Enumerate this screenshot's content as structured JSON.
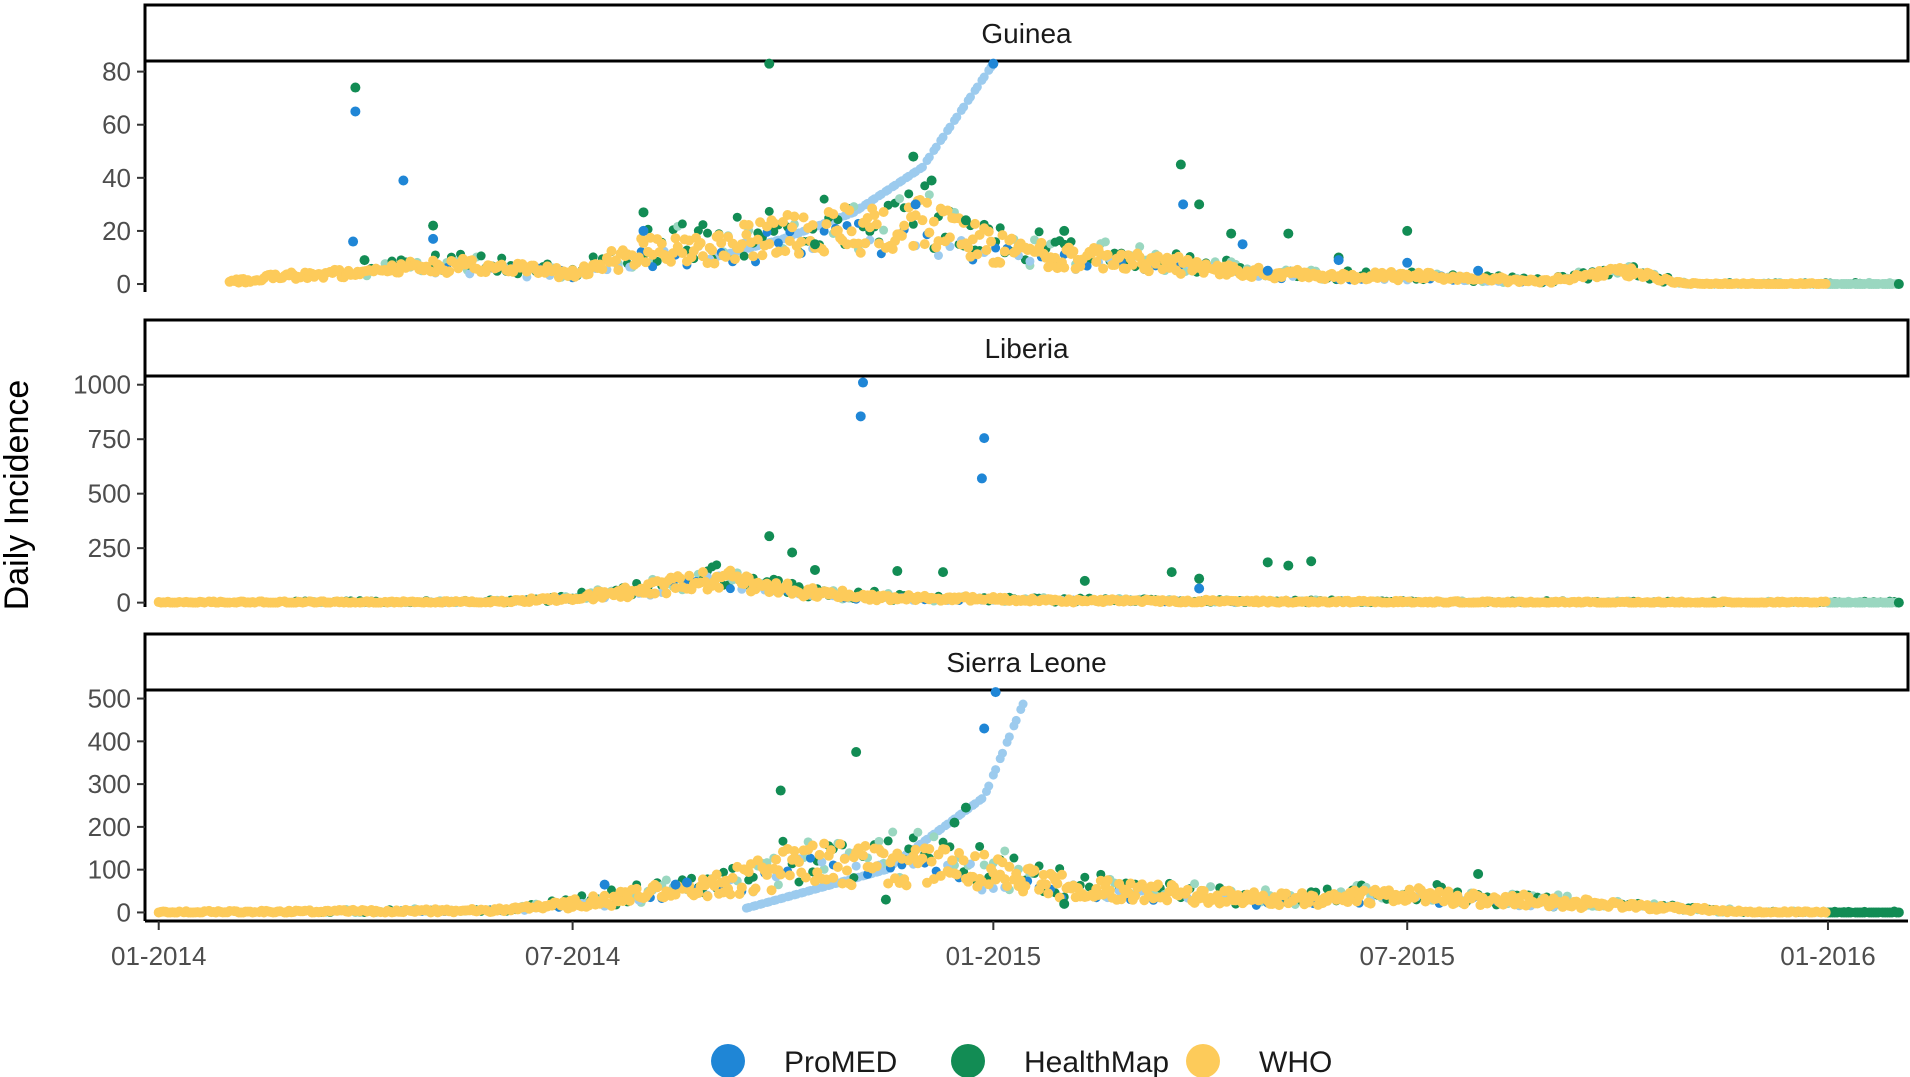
{
  "chart_data": {
    "type": "scatter",
    "ylabel": "Daily Incidence",
    "xlabel": "",
    "x_ticks": [
      "01-2014",
      "07-2014",
      "01-2015",
      "07-2015",
      "01-2016"
    ],
    "x_tick_dates": [
      "2014-01-01",
      "2014-07-01",
      "2015-01-01",
      "2015-07-01",
      "2016-01-01"
    ],
    "xlim": [
      "2013-12-26",
      "2016-02-05"
    ],
    "legend": {
      "position": "bottom"
    },
    "colors": {
      "ProMED": "#1f86d6",
      "HealthMap": "#128c54",
      "WHO": "#fdcb5a",
      "ProMED_light": "#9ccbee",
      "HealthMap_light": "#9ad7c0"
    },
    "series_order": [
      "ProMED",
      "HealthMap",
      "WHO"
    ],
    "panels": [
      {
        "country": "Guinea",
        "yticks": [
          0,
          20,
          40,
          60,
          80
        ],
        "ylim": [
          -3,
          84
        ],
        "ProMED": [
          [
            "2014-03-28",
            65
          ],
          [
            "2014-04-18",
            39
          ],
          [
            "2014-03-27",
            16
          ],
          [
            "2014-05-01",
            17
          ],
          [
            "2014-08-01",
            20
          ],
          [
            "2014-11-28",
            30
          ],
          [
            "2015-01-01",
            83
          ],
          [
            "2015-03-25",
            30
          ],
          [
            "2015-04-20",
            15
          ],
          [
            "2015-05-01",
            5
          ],
          [
            "2015-06-01",
            9
          ],
          [
            "2015-07-01",
            8
          ],
          [
            "2015-08-01",
            5
          ]
        ],
        "ProMED_curve": [
          [
            "2014-09-01",
            10
          ],
          [
            "2014-10-01",
            17
          ],
          [
            "2014-11-01",
            27
          ],
          [
            "2014-12-01",
            44
          ],
          [
            "2015-01-01",
            83
          ]
        ],
        "HealthMap": [
          [
            "2014-03-28",
            74
          ],
          [
            "2014-09-25",
            83
          ],
          [
            "2014-11-27",
            48
          ],
          [
            "2014-12-05",
            39
          ],
          [
            "2015-03-24",
            45
          ],
          [
            "2015-04-01",
            30
          ],
          [
            "2015-04-15",
            19
          ],
          [
            "2015-05-10",
            19
          ],
          [
            "2015-06-01",
            10
          ],
          [
            "2015-07-01",
            20
          ],
          [
            "2014-05-01",
            22
          ],
          [
            "2014-04-01",
            9
          ],
          [
            "2014-08-01",
            27
          ],
          [
            "2014-10-15",
            15
          ],
          [
            "2014-12-20",
            24
          ],
          [
            "2015-02-01",
            20
          ],
          [
            "2016-02-01",
            0
          ]
        ],
        "WHO": [
          [
            "2014-02-01",
            1
          ],
          [
            "2014-03-01",
            3
          ],
          [
            "2014-04-01",
            4
          ],
          [
            "2014-05-01",
            7
          ],
          [
            "2014-06-01",
            6
          ],
          [
            "2014-07-01",
            4
          ],
          [
            "2014-08-01",
            12
          ],
          [
            "2014-09-01",
            14
          ],
          [
            "2014-10-01",
            18
          ],
          [
            "2014-11-01",
            20
          ],
          [
            "2014-12-01",
            22
          ],
          [
            "2015-01-01",
            14
          ],
          [
            "2015-02-01",
            10
          ],
          [
            "2015-03-01",
            9
          ],
          [
            "2015-04-01",
            6
          ],
          [
            "2015-05-01",
            4
          ],
          [
            "2015-06-01",
            3
          ],
          [
            "2015-07-01",
            3
          ],
          [
            "2015-08-01",
            2
          ],
          [
            "2015-09-01",
            1
          ],
          [
            "2015-10-01",
            5
          ],
          [
            "2015-11-01",
            0
          ],
          [
            "2016-01-01",
            0
          ]
        ]
      },
      {
        "country": "Liberia",
        "yticks": [
          0,
          250,
          500,
          750,
          1000
        ],
        "ylim": [
          -20,
          1040
        ],
        "ProMED": [
          [
            "2014-11-05",
            1010
          ],
          [
            "2014-11-04",
            855
          ],
          [
            "2014-12-28",
            755
          ],
          [
            "2014-12-27",
            570
          ],
          [
            "2015-04-01",
            65
          ]
        ],
        "ProMED_curve": [],
        "HealthMap": [
          [
            "2014-09-25",
            305
          ],
          [
            "2014-10-05",
            230
          ],
          [
            "2014-10-15",
            150
          ],
          [
            "2014-11-20",
            145
          ],
          [
            "2014-12-10",
            140
          ],
          [
            "2015-03-20",
            140
          ],
          [
            "2015-04-01",
            110
          ],
          [
            "2015-05-01",
            185
          ],
          [
            "2015-05-10",
            170
          ],
          [
            "2015-05-20",
            190
          ],
          [
            "2015-02-10",
            100
          ],
          [
            "2016-02-01",
            0
          ]
        ],
        "WHO": [
          [
            "2014-01-01",
            0
          ],
          [
            "2014-05-01",
            2
          ],
          [
            "2014-06-01",
            5
          ],
          [
            "2014-07-01",
            20
          ],
          [
            "2014-08-01",
            60
          ],
          [
            "2014-09-01",
            110
          ],
          [
            "2014-10-01",
            60
          ],
          [
            "2014-11-01",
            30
          ],
          [
            "2014-12-01",
            20
          ],
          [
            "2015-02-01",
            10
          ],
          [
            "2015-05-01",
            5
          ],
          [
            "2015-10-01",
            0
          ],
          [
            "2016-01-01",
            0
          ]
        ]
      },
      {
        "country": "Sierra Leone",
        "yticks": [
          0,
          100,
          200,
          300,
          400,
          500
        ],
        "ylim": [
          -20,
          520
        ],
        "ProMED": [
          [
            "2014-07-15",
            65
          ],
          [
            "2014-08-15",
            65
          ],
          [
            "2014-08-20",
            70
          ],
          [
            "2014-12-28",
            430
          ],
          [
            "2015-01-02",
            515
          ]
        ],
        "ProMED_curve": [
          [
            "2014-09-15",
            10
          ],
          [
            "2014-11-15",
            100
          ],
          [
            "2014-12-28",
            270
          ],
          [
            "2015-01-15",
            500
          ]
        ],
        "HealthMap": [
          [
            "2014-09-30",
            285
          ],
          [
            "2014-11-02",
            375
          ],
          [
            "2014-12-20",
            245
          ],
          [
            "2014-12-15",
            210
          ],
          [
            "2015-08-01",
            90
          ],
          [
            "2014-11-15",
            30
          ],
          [
            "2015-02-01",
            20
          ],
          [
            "2016-02-01",
            0
          ]
        ],
        "WHO": [
          [
            "2014-01-01",
            0
          ],
          [
            "2014-06-01",
            5
          ],
          [
            "2014-07-01",
            20
          ],
          [
            "2014-08-01",
            40
          ],
          [
            "2014-09-01",
            60
          ],
          [
            "2014-10-01",
            100
          ],
          [
            "2014-11-01",
            120
          ],
          [
            "2014-12-01",
            110
          ],
          [
            "2015-01-01",
            90
          ],
          [
            "2015-02-01",
            60
          ],
          [
            "2015-03-01",
            50
          ],
          [
            "2015-05-01",
            30
          ],
          [
            "2015-07-01",
            40
          ],
          [
            "2015-09-01",
            25
          ],
          [
            "2015-12-01",
            0
          ],
          [
            "2016-01-01",
            0
          ]
        ]
      }
    ]
  },
  "legend_items": [
    {
      "label": "ProMED"
    },
    {
      "label": "HealthMap"
    },
    {
      "label": "WHO"
    }
  ]
}
